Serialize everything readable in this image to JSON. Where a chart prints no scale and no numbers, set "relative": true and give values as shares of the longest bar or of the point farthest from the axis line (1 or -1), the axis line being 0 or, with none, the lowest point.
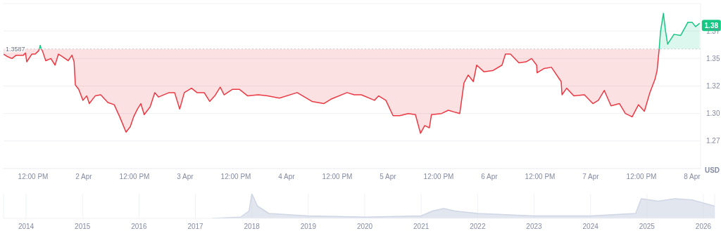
{
  "chart_data": [
    {
      "type": "line",
      "ylabel": "USD",
      "grid": "y",
      "xlim": [
        "2026-04-01T05:00",
        "2026-04-08T02:00"
      ],
      "xticks": [
        {
          "value": "2026-04-01T12:00",
          "label": "12:00 PM"
        },
        {
          "value": "2026-04-02",
          "label": "2 Apr"
        },
        {
          "value": "2026-04-02T12:00",
          "label": "12:00 PM"
        },
        {
          "value": "2026-04-03",
          "label": "3 Apr"
        },
        {
          "value": "2026-04-03T12:00",
          "label": "12:00 PM"
        },
        {
          "value": "2026-04-04",
          "label": "4 Apr"
        },
        {
          "value": "2026-04-04T12:00",
          "label": "12:00 PM"
        },
        {
          "value": "2026-04-05",
          "label": "5 Apr"
        },
        {
          "value": "2026-04-05T12:00",
          "label": "12:00 PM"
        },
        {
          "value": "2026-04-06",
          "label": "6 Apr"
        },
        {
          "value": "2026-04-06T12:00",
          "label": "12:00 PM"
        },
        {
          "value": "2026-04-07",
          "label": "7 Apr"
        },
        {
          "value": "2026-04-07T12:00",
          "label": "12:00 PM"
        },
        {
          "value": "2026-04-08",
          "label": "8 Apr"
        }
      ],
      "ylim": [
        1.25,
        1.4
      ],
      "yticks": [
        {
          "value": 1.275,
          "label": "1.27"
        },
        {
          "value": 1.3,
          "label": "1.30"
        },
        {
          "value": 1.325,
          "label": "1.32"
        },
        {
          "value": 1.35,
          "label": "1.35"
        },
        {
          "value": 1.375,
          "label": "1.37"
        }
      ],
      "ref_lines": [
        {
          "axis": "y",
          "value": 1.3587,
          "label": "1.3587",
          "color": "#c7cbd4",
          "line_style": "dotted"
        }
      ],
      "annotations": [
        {
          "text": "1.38",
          "x": "2026-04-08T01:48",
          "y": 1.38
        }
      ],
      "series": [
        {
          "color": "#ea3943",
          "lower": [
            1.354,
            1.352,
            1.35,
            1.353,
            1.353,
            1.355,
            1.347,
            1.354,
            1.354,
            1.357,
            1.3587,
            null,
            1.3587,
            1.357,
            1.348,
            1.35,
            1.344,
            1.354,
            1.352,
            1.348,
            1.353,
            1.347,
            1.326,
            1.322,
            1.312,
            1.316,
            1.309,
            1.316,
            1.317,
            1.31,
            1.308,
            1.297,
            1.283,
            1.288,
            1.297,
            1.304,
            1.309,
            1.299,
            1.306,
            1.319,
            1.315,
            1.319,
            1.319,
            1.304,
            1.319,
            1.323,
            1.319,
            1.319,
            1.311,
            1.316,
            1.324,
            1.317,
            1.322,
            1.322,
            1.316,
            1.317,
            1.316,
            1.314,
            1.319,
            1.311,
            1.309,
            1.313,
            1.319,
            1.317,
            1.317,
            1.312,
            1.316,
            1.312,
            1.298,
            1.298,
            1.3,
            1.299,
            1.282,
            1.289,
            1.287,
            1.299,
            1.3,
            1.303,
            1.301,
            1.3,
            1.328,
            1.335,
            1.329,
            1.344,
            1.338,
            1.339,
            1.344,
            1.354,
            1.354,
            1.346,
            1.347,
            1.35,
            1.344,
            1.337,
            1.341,
            1.342,
            1.329,
            1.317,
            1.323,
            1.316,
            1.317,
            1.309,
            1.312,
            1.321,
            1.307,
            1.309,
            1.3,
            1.297,
            1.308,
            1.302,
            1.319,
            1.331,
            1.339,
            1.3587
          ],
          "upper": [
            1.3587,
            1.3587,
            1.3587,
            1.3587,
            1.3587,
            1.3587,
            1.3587,
            1.3587,
            1.3587,
            1.3587,
            1.3587,
            null,
            1.3587,
            1.3587,
            1.3587,
            1.3587,
            1.3587,
            1.3587,
            1.3587,
            1.3587,
            1.3587,
            1.3587,
            1.3587,
            1.3587,
            1.3587,
            1.3587,
            1.3587,
            1.3587,
            1.3587,
            1.3587,
            1.3587,
            1.3587,
            1.3587,
            1.3587,
            1.3587,
            1.3587,
            1.3587,
            1.3587,
            1.3587,
            1.3587,
            1.3587,
            1.3587,
            1.3587,
            1.3587,
            1.3587,
            1.3587,
            1.3587,
            1.3587,
            1.3587,
            1.3587,
            1.3587,
            1.3587,
            1.3587,
            1.3587,
            1.3587,
            1.3587,
            1.3587,
            1.3587,
            1.3587,
            1.3587,
            1.3587,
            1.3587,
            1.3587,
            1.3587,
            1.3587,
            1.3587,
            1.3587,
            1.3587,
            1.3587,
            1.3587,
            1.3587,
            1.3587,
            1.3587,
            1.3587,
            1.3587,
            1.3587,
            1.3587,
            1.3587,
            1.3587,
            1.3587,
            1.3587,
            1.3587,
            1.3587,
            1.3587,
            1.3587,
            1.3587,
            1.3587,
            1.3587,
            1.3587,
            1.3587,
            1.3587,
            1.3587,
            1.3587,
            1.3587,
            1.3587,
            1.3587,
            1.3587,
            1.3587,
            1.3587,
            1.3587,
            1.3587,
            1.3587,
            1.3587,
            1.3587,
            1.3587,
            1.3587,
            1.3587,
            1.3587,
            1.3587,
            1.3587,
            1.3587,
            1.3587,
            1.3587,
            1.3587
          ],
          "x": [
            "2026-04-01T05:00",
            "2026-04-01T05:48",
            "2026-04-01T07:00",
            "2026-04-01T08:00",
            "2026-04-01T09:42",
            "2026-04-01T10:12",
            "2026-04-01T10:30",
            "2026-04-01T11:42",
            "2026-04-01T12:30",
            "2026-04-01T13:18",
            "2026-04-01T13:30",
            "2026-04-01T13:42",
            "2026-04-01T13:54",
            "2026-04-01T14:12",
            "2026-04-01T15:00",
            "2026-04-01T16:12",
            "2026-04-01T17:12",
            "2026-04-01T18:00",
            "2026-04-01T18:48",
            "2026-04-01T20:18",
            "2026-04-01T21:12",
            "2026-04-01T21:42",
            "2026-04-01T22:00",
            "2026-04-01T22:48",
            "2026-04-01T23:48",
            "2026-04-02T00:42",
            "2026-04-02T01:18",
            "2026-04-02T02:42",
            "2026-04-02T04:00",
            "2026-04-02T05:42",
            "2026-04-02T07:12",
            "2026-04-02T08:30",
            "2026-04-02T10:00",
            "2026-04-02T11:00",
            "2026-04-02T11:48",
            "2026-04-02T12:42",
            "2026-04-02T13:30",
            "2026-04-02T14:18",
            "2026-04-02T15:42",
            "2026-04-02T16:48",
            "2026-04-02T17:42",
            "2026-04-02T20:12",
            "2026-04-02T21:30",
            "2026-04-02T22:42",
            "2026-04-02T23:48",
            "2026-04-03T01:30",
            "2026-04-03T02:48",
            "2026-04-03T04:30",
            "2026-04-03T05:48",
            "2026-04-03T07:00",
            "2026-04-03T08:18",
            "2026-04-03T09:12",
            "2026-04-03T11:12",
            "2026-04-03T12:48",
            "2026-04-03T14:48",
            "2026-04-03T17:18",
            "2026-04-03T19:30",
            "2026-04-03T22:18",
            "2026-04-04T02:30",
            "2026-04-04T06:00",
            "2026-04-04T08:48",
            "2026-04-04T10:30",
            "2026-04-04T14:18",
            "2026-04-04T16:00",
            "2026-04-04T17:42",
            "2026-04-04T20:48",
            "2026-04-04T21:48",
            "2026-04-04T23:30",
            "2026-04-05T01:12",
            "2026-04-05T02:48",
            "2026-04-05T04:48",
            "2026-04-05T06:30",
            "2026-04-05T07:42",
            "2026-04-05T08:42",
            "2026-04-05T09:48",
            "2026-04-05T10:18",
            "2026-04-05T12:42",
            "2026-04-05T14:18",
            "2026-04-05T16:00",
            "2026-04-05T17:00",
            "2026-04-05T18:00",
            "2026-04-05T19:00",
            "2026-04-05T20:12",
            "2026-04-05T21:00",
            "2026-04-05T22:42",
            "2026-04-06T00:48",
            "2026-04-06T03:00",
            "2026-04-06T03:48",
            "2026-04-06T05:00",
            "2026-04-06T07:00",
            "2026-04-06T08:42",
            "2026-04-06T10:00",
            "2026-04-06T11:12",
            "2026-04-06T11:18",
            "2026-04-06T13:00",
            "2026-04-06T14:42",
            "2026-04-06T17:00",
            "2026-04-06T17:12",
            "2026-04-06T18:18",
            "2026-04-06T20:00",
            "2026-04-06T22:30",
            "2026-04-07T00:30",
            "2026-04-07T01:48",
            "2026-04-07T03:12",
            "2026-04-07T04:48",
            "2026-04-07T06:48",
            "2026-04-07T08:12",
            "2026-04-07T09:48",
            "2026-04-07T11:18",
            "2026-04-07T12:42",
            "2026-04-07T14:00",
            "2026-04-07T15:12",
            "2026-04-07T15:42",
            "2026-04-07T16:12"
          ],
          "values": [
            1.354,
            1.352,
            1.35,
            1.353,
            1.353,
            1.355,
            1.347,
            1.354,
            1.354,
            1.357,
            1.3587,
            null,
            1.3587,
            1.357,
            1.348,
            1.35,
            1.344,
            1.354,
            1.352,
            1.348,
            1.353,
            1.347,
            1.326,
            1.322,
            1.312,
            1.316,
            1.309,
            1.316,
            1.317,
            1.31,
            1.308,
            1.297,
            1.283,
            1.288,
            1.297,
            1.304,
            1.309,
            1.299,
            1.306,
            1.319,
            1.315,
            1.319,
            1.319,
            1.304,
            1.319,
            1.323,
            1.319,
            1.319,
            1.311,
            1.316,
            1.324,
            1.317,
            1.322,
            1.322,
            1.316,
            1.317,
            1.316,
            1.314,
            1.319,
            1.311,
            1.309,
            1.313,
            1.319,
            1.317,
            1.317,
            1.312,
            1.316,
            1.312,
            1.298,
            1.298,
            1.3,
            1.299,
            1.282,
            1.289,
            1.287,
            1.299,
            1.3,
            1.303,
            1.301,
            1.3,
            1.328,
            1.335,
            1.329,
            1.344,
            1.338,
            1.339,
            1.344,
            1.354,
            1.354,
            1.346,
            1.347,
            1.35,
            1.344,
            1.337,
            1.341,
            1.342,
            1.329,
            1.317,
            1.323,
            1.316,
            1.317,
            1.309,
            1.312,
            1.321,
            1.307,
            1.309,
            1.3,
            1.297,
            1.308,
            1.302,
            1.319,
            1.331,
            1.339,
            1.3587
          ]
        },
        {
          "color": "#16c784",
          "lower": [
            null,
            null,
            null,
            null,
            1.3587,
            1.3587,
            1.3587,
            1.3587,
            1.3587,
            1.3587,
            1.3587,
            1.3587,
            1.3587,
            1.3587,
            1.3587
          ],
          "upper": [
            null,
            null,
            null,
            null,
            1.3587,
            1.374,
            1.391,
            1.375,
            1.363,
            1.372,
            1.371,
            1.383,
            1.383,
            1.379,
            1.382
          ],
          "x": [
            "2026-04-01T13:30",
            "2026-04-01T13:42",
            "2026-04-01T13:54",
            "2026-04-05T04:00",
            "2026-04-07T16:12",
            "2026-04-07T16:30",
            "2026-04-07T17:12",
            "2026-04-07T17:42",
            "2026-04-07T18:12",
            "2026-04-07T19:42",
            "2026-04-07T21:18",
            "2026-04-07T23:00",
            "2026-04-08T00:00",
            "2026-04-08T00:48",
            "2026-04-08T01:48"
          ],
          "values": [
            1.3587,
            1.362,
            1.3587,
            null,
            1.3587,
            1.374,
            1.391,
            1.375,
            1.363,
            1.372,
            1.371,
            1.383,
            1.383,
            1.379,
            1.382
          ]
        }
      ]
    },
    {
      "type": "area",
      "relative": true,
      "grid": "x",
      "xlim": [
        2013.6,
        2026.2
      ],
      "xticks": [
        2014,
        2015,
        2016,
        2017,
        2018,
        2019,
        2020,
        2021,
        2022,
        2023,
        2024,
        2025,
        2026
      ],
      "series": [
        {
          "color": "#cfd6e4",
          "x": [
            2017.3,
            2017.8,
            2017.95,
            2018.0,
            2018.1,
            2018.3,
            2019.0,
            2020.0,
            2021.0,
            2021.2,
            2021.4,
            2021.6,
            2022.0,
            2023.0,
            2024.0,
            2024.8,
            2024.9,
            2025.2,
            2025.5,
            2025.8,
            2026.2
          ],
          "values": [
            0,
            0.05,
            0.3,
            1.0,
            0.5,
            0.2,
            0.1,
            0.05,
            0.1,
            0.3,
            0.4,
            0.3,
            0.2,
            0.1,
            0.1,
            0.2,
            0.8,
            0.7,
            0.8,
            0.75,
            0.5
          ]
        }
      ]
    }
  ]
}
